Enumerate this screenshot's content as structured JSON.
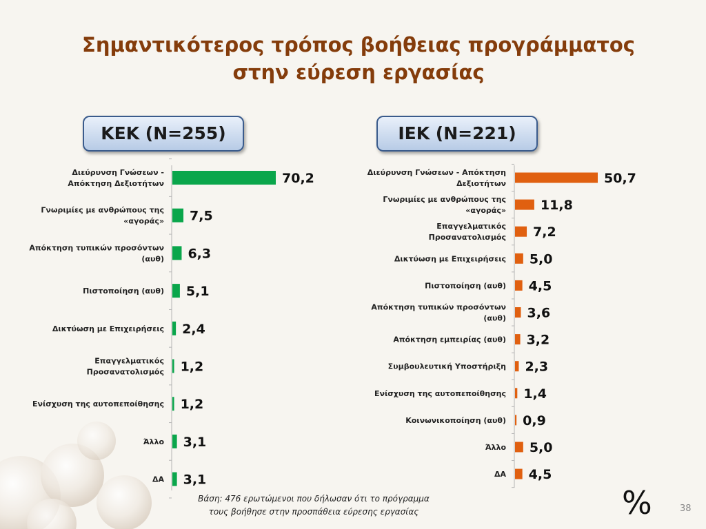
{
  "slide": {
    "title_line1": "Σημαντικότερος τρόπος βοήθειας προγράμματος",
    "title_line2": "στην εύρεση εργασίας",
    "footnote_line1": "Βάση: 476 ερωτώμενοι που δήλωσαν ότι το πρόγραμμα",
    "footnote_line2": "τους βοήθησε στην προσπάθεια εύρεσης εργασίας",
    "unit_symbol": "%",
    "page_number": "38"
  },
  "chart_data": [
    {
      "type": "bar",
      "orientation": "horizontal",
      "header": "ΚΕΚ (Ν=255)",
      "color": "#0aa64b",
      "categories": [
        [
          "Διεύρυνση Γνώσεων -",
          "Απόκτηση Δεξιοτήτων"
        ],
        [
          "Γνωριμίες με ανθρώπους της",
          "«αγοράς»"
        ],
        [
          "Απόκτηση τυπικών προσόντων",
          "(αυθ)"
        ],
        [
          "Πιστοποίηση (αυθ)"
        ],
        [
          "Δικτύωση με Επιχειρήσεις"
        ],
        [
          "Επαγγελματικός",
          "Προσανατολισμός"
        ],
        [
          "Ενίσχυση της αυτοπεποίθησης"
        ],
        [
          "Άλλο"
        ],
        [
          "ΔΑ"
        ]
      ],
      "values": [
        70.2,
        7.5,
        6.3,
        5.1,
        2.4,
        1.2,
        1.2,
        3.1,
        3.1
      ],
      "value_labels": [
        "70,2",
        "7,5",
        "6,3",
        "5,1",
        "2,4",
        "1,2",
        "1,2",
        "3,1",
        "3,1"
      ],
      "xlim": [
        0,
        70.2
      ]
    },
    {
      "type": "bar",
      "orientation": "horizontal",
      "header": "ΙΕΚ (Ν=221)",
      "color": "#e06010",
      "categories": [
        [
          "Διεύρυνση Γνώσεων - Απόκτηση",
          "Δεξιοτήτων"
        ],
        [
          "Γνωριμίες με ανθρώπους της",
          "«αγοράς»"
        ],
        [
          "Επαγγελματικός",
          "Προσανατολισμός"
        ],
        [
          "Δικτύωση με Επιχειρήσεις"
        ],
        [
          "Πιστοποίηση (αυθ)"
        ],
        [
          "Απόκτηση τυπικών προσόντων",
          "(αυθ)"
        ],
        [
          "Απόκτηση εμπειρίας (αυθ)"
        ],
        [
          "Συμβουλευτική Υποστήριξη"
        ],
        [
          "Ενίσχυση της αυτοπεποίθησης"
        ],
        [
          "Κοινωνικοποίηση (αυθ)"
        ],
        [
          "Άλλο"
        ],
        [
          "ΔΑ"
        ]
      ],
      "values": [
        50.7,
        11.8,
        7.2,
        5.0,
        4.5,
        3.6,
        3.2,
        2.3,
        1.4,
        0.9,
        5.0,
        4.5
      ],
      "value_labels": [
        "50,7",
        "11,8",
        "7,2",
        "5,0",
        "4,5",
        "3,6",
        "3,2",
        "2,3",
        "1,4",
        "0,9",
        "5,0",
        "4,5"
      ],
      "xlim": [
        0,
        50.7
      ]
    }
  ]
}
